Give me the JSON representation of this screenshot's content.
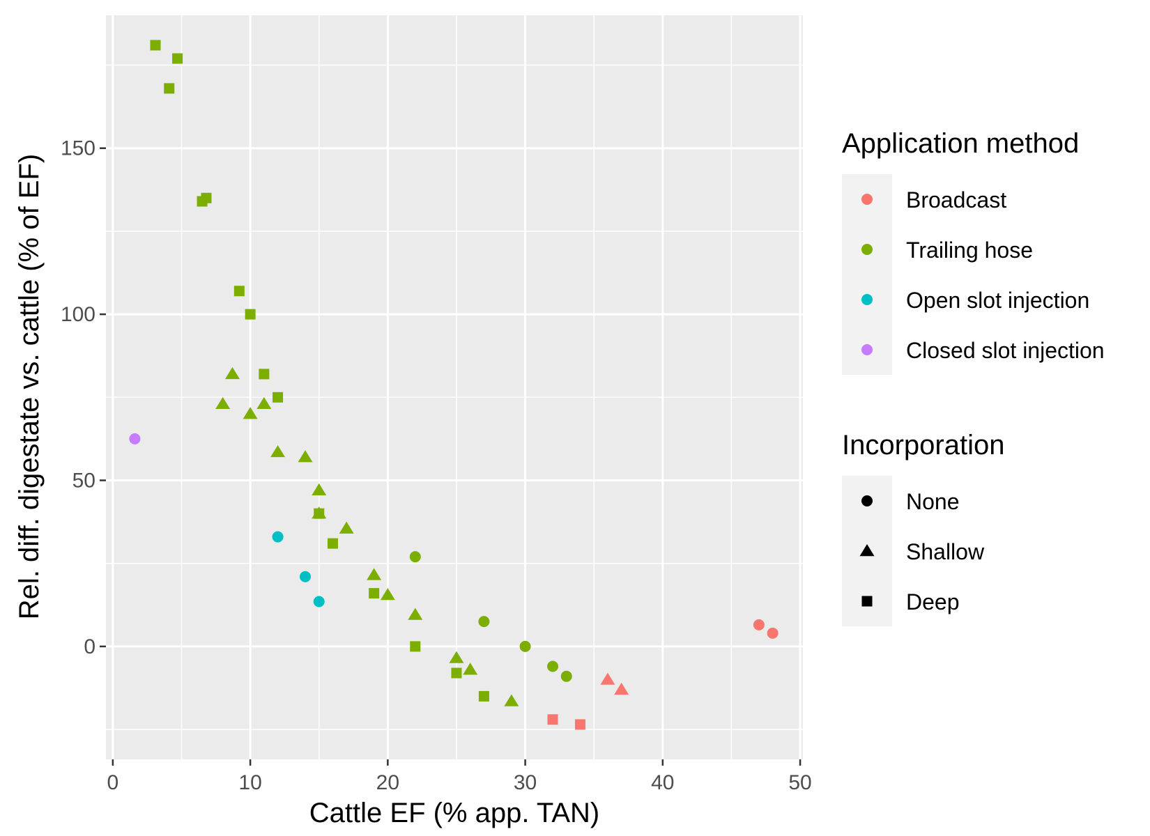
{
  "chart_data": {
    "type": "scatter",
    "xlabel": "Cattle EF (% app. TAN)",
    "ylabel": "Rel. diff. digestate vs. cattle (% of EF)",
    "xlim": [
      -0.5,
      50.2
    ],
    "ylim": [
      -34,
      190
    ],
    "x_ticks": [
      0,
      10,
      20,
      30,
      40,
      50
    ],
    "y_ticks": [
      0,
      50,
      100,
      150
    ],
    "x_tick_labels": [
      "0",
      "10",
      "20",
      "30",
      "40",
      "50"
    ],
    "y_tick_labels": [
      "0",
      "50",
      "100",
      "150"
    ],
    "grid": true,
    "panel_background": "#ebebeb",
    "legend_placement": "right",
    "colors": {
      "Broadcast": "#f8766d",
      "Trailing hose": "#7cae00",
      "Open slot injection": "#00bfc4",
      "Closed slot injection": "#c77cff"
    },
    "legends": [
      {
        "title": "Application method",
        "entries": [
          {
            "label": "Broadcast",
            "shape": "circle",
            "color": "#f8766d"
          },
          {
            "label": "Trailing hose",
            "shape": "circle",
            "color": "#7cae00"
          },
          {
            "label": "Open slot injection",
            "shape": "circle",
            "color": "#00bfc4"
          },
          {
            "label": "Closed slot injection",
            "shape": "circle",
            "color": "#c77cff"
          }
        ]
      },
      {
        "title": "Incorporation",
        "entries": [
          {
            "label": "None",
            "shape": "circle",
            "color": "#000000"
          },
          {
            "label": "Shallow",
            "shape": "triangle",
            "color": "#000000"
          },
          {
            "label": "Deep",
            "shape": "square",
            "color": "#000000"
          }
        ]
      }
    ],
    "series": [
      {
        "method": "Broadcast",
        "incorporation": "None",
        "points": [
          [
            47,
            6.5
          ],
          [
            48,
            4
          ]
        ]
      },
      {
        "method": "Broadcast",
        "incorporation": "Shallow",
        "points": [
          [
            36,
            -10
          ],
          [
            37,
            -13
          ]
        ]
      },
      {
        "method": "Broadcast",
        "incorporation": "Deep",
        "points": [
          [
            32,
            -22
          ],
          [
            34,
            -23.5
          ]
        ]
      },
      {
        "method": "Trailing hose",
        "incorporation": "None",
        "points": [
          [
            22,
            27
          ],
          [
            27,
            7.5
          ],
          [
            30,
            0
          ],
          [
            32,
            -6
          ],
          [
            33,
            -9
          ]
        ]
      },
      {
        "method": "Trailing hose",
        "incorporation": "Shallow",
        "points": [
          [
            8,
            73
          ],
          [
            8.7,
            82
          ],
          [
            10,
            70
          ],
          [
            11,
            73
          ],
          [
            12,
            58.5
          ],
          [
            14,
            57
          ],
          [
            15,
            47
          ],
          [
            15,
            40
          ],
          [
            17,
            35.5
          ],
          [
            19,
            21.5
          ],
          [
            20,
            15.5
          ],
          [
            22,
            9.5
          ],
          [
            25,
            -3.5
          ],
          [
            26,
            -7
          ],
          [
            29,
            -16.5
          ]
        ]
      },
      {
        "method": "Trailing hose",
        "incorporation": "Deep",
        "points": [
          [
            3.1,
            181
          ],
          [
            4.7,
            177
          ],
          [
            4.1,
            168
          ],
          [
            6.5,
            134
          ],
          [
            6.8,
            135
          ],
          [
            9.2,
            107
          ],
          [
            10,
            100
          ],
          [
            11,
            82
          ],
          [
            12,
            75
          ],
          [
            15,
            40
          ],
          [
            16,
            31
          ],
          [
            19,
            16
          ],
          [
            22,
            0
          ],
          [
            25,
            -8
          ],
          [
            27,
            -15
          ]
        ]
      },
      {
        "method": "Open slot injection",
        "incorporation": "None",
        "points": [
          [
            12,
            33
          ],
          [
            14,
            21
          ],
          [
            15,
            13.5
          ]
        ]
      },
      {
        "method": "Closed slot injection",
        "incorporation": "None",
        "points": [
          [
            1.6,
            62.5
          ]
        ]
      }
    ]
  }
}
